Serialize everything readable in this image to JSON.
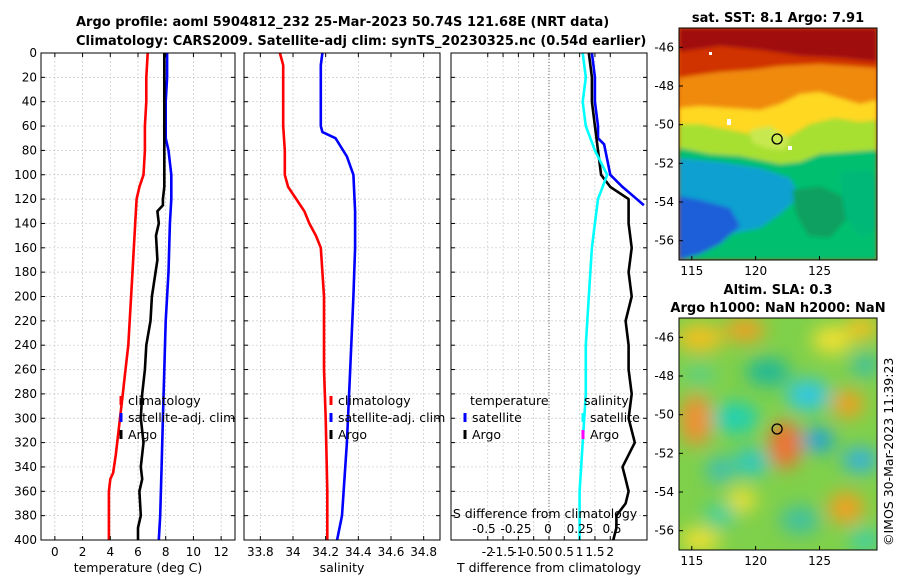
{
  "title": {
    "line1": "Argo profile: aoml 5904812_232 25-Mar-2023 50.74S 121.68E (NRT data)",
    "line2": "Climatology: CARS2009. Satellite-adj clim: synTS_20230325.nc (0.54d earlier)"
  },
  "watermark": "©IMOS 30-Mar-2023 11:39:23",
  "chart_data": [
    {
      "id": "temperature",
      "type": "line",
      "xlabel": "temperature (deg C)",
      "xlim": [
        -1,
        13
      ],
      "xticks": [
        0,
        2,
        4,
        6,
        8,
        10,
        12
      ],
      "ylim": [
        0,
        400
      ],
      "yticks": [
        0,
        20,
        40,
        60,
        80,
        100,
        120,
        140,
        160,
        180,
        200,
        220,
        240,
        260,
        280,
        300,
        320,
        340,
        360,
        380,
        400
      ],
      "grid": true,
      "legend_position": "lower-center",
      "series": [
        {
          "name": "climatology",
          "color": "#ff0000",
          "x": [
            6.7,
            6.6,
            6.6,
            6.5,
            6.5,
            6.4,
            6.1,
            5.9,
            5.8,
            5.6,
            5.5,
            5.3,
            5.1,
            4.9,
            4.7,
            4.4,
            4.2,
            4.0,
            3.9,
            3.9,
            3.9
          ],
          "y": [
            0,
            20,
            40,
            60,
            80,
            100,
            110,
            120,
            140,
            180,
            200,
            240,
            260,
            280,
            300,
            330,
            345,
            350,
            360,
            380,
            400
          ]
        },
        {
          "name": "satellite-adj. clim",
          "color": "#0000ff",
          "x": [
            8.1,
            8.1,
            8.0,
            8.0,
            8.0,
            8.2,
            8.4,
            8.4,
            8.3,
            8.2,
            8.1,
            8.0,
            7.9,
            7.8,
            7.7,
            7.6,
            7.5
          ],
          "y": [
            0,
            20,
            40,
            60,
            70,
            80,
            100,
            120,
            140,
            180,
            200,
            220,
            260,
            300,
            340,
            380,
            400
          ]
        },
        {
          "name": "Argo",
          "color": "#000000",
          "x": [
            7.9,
            7.9,
            7.9,
            7.9,
            7.9,
            7.9,
            7.8,
            7.8,
            7.4,
            7.5,
            7.3,
            7.4,
            7.0,
            6.9,
            6.6,
            6.5,
            6.3,
            6.2,
            6.4,
            6.2,
            6.3,
            6.1,
            6.2,
            6.0,
            6.0
          ],
          "y": [
            0,
            40,
            60,
            80,
            100,
            110,
            120,
            125,
            130,
            140,
            150,
            170,
            200,
            220,
            240,
            260,
            280,
            300,
            320,
            340,
            350,
            360,
            380,
            390,
            400
          ]
        }
      ]
    },
    {
      "id": "salinity",
      "type": "line",
      "xlabel": "salinity",
      "xlim": [
        33.7,
        34.9
      ],
      "xticks": [
        33.8,
        34,
        34.2,
        34.4,
        34.6,
        34.8
      ],
      "ylim": [
        0,
        400
      ],
      "grid": true,
      "legend_position": "lower-center",
      "series": [
        {
          "name": "climatology",
          "color": "#ff0000",
          "x": [
            33.92,
            33.94,
            33.94,
            33.95,
            33.95,
            33.97,
            34.02,
            34.07,
            34.1,
            34.14,
            34.17,
            34.18,
            34.19,
            34.19,
            34.2,
            34.21,
            34.21
          ],
          "y": [
            0,
            10,
            60,
            80,
            100,
            110,
            120,
            130,
            140,
            150,
            160,
            180,
            200,
            260,
            300,
            360,
            400
          ]
        },
        {
          "name": "satellite-adj. clim",
          "color": "#0000ff",
          "x": [
            34.18,
            34.17,
            34.17,
            34.17,
            34.18,
            34.26,
            34.33,
            34.37,
            34.38,
            34.38,
            34.37,
            34.35,
            34.33,
            34.3,
            34.27
          ],
          "y": [
            0,
            10,
            40,
            60,
            65,
            70,
            85,
            100,
            130,
            160,
            200,
            260,
            320,
            380,
            400
          ]
        },
        {
          "name": "Argo",
          "color": "#000000",
          "x": [],
          "y": []
        }
      ]
    },
    {
      "id": "t_difference",
      "type": "line",
      "xlabel": "T difference from climatology",
      "xlim": [
        -3.2,
        3.2
      ],
      "xticks": [
        -2,
        -1.5,
        -1,
        -0.5,
        0,
        0.5,
        1,
        1.5,
        2
      ],
      "top_xlabel": "S difference from climatology",
      "top_xticks": [
        "-0.5",
        "-0.25",
        "0",
        "0.25",
        "0.5"
      ],
      "ylim": [
        0,
        400
      ],
      "grid": true,
      "zero_line": true,
      "legends": [
        {
          "title": "temperature",
          "entries": [
            {
              "name": "satellite",
              "color": "#0000ff"
            },
            {
              "name": "Argo",
              "color": "#000000"
            }
          ]
        },
        {
          "title": "salinity",
          "entries": [
            {
              "name": "satellite",
              "color": "#00ffff"
            },
            {
              "name": "Argo",
              "color": "#ff00ff"
            }
          ]
        }
      ],
      "series": [
        {
          "name": "temperature satellite",
          "color": "#0000ff",
          "x": [
            1.4,
            1.5,
            1.5,
            1.6,
            1.6,
            1.8,
            2.0,
            2.4,
            3.1
          ],
          "y": [
            0,
            20,
            40,
            60,
            70,
            75,
            100,
            110,
            125
          ]
        },
        {
          "name": "temperature Argo",
          "color": "#000000",
          "x": [
            1.3,
            1.4,
            1.4,
            1.5,
            1.6,
            1.7,
            2.0,
            2.6,
            2.6,
            2.6,
            2.7,
            2.6,
            2.7,
            2.5,
            2.6,
            2.6,
            2.7,
            2.6,
            2.8,
            2.4,
            2.5,
            2.6,
            2.5,
            2.2,
            2.2,
            2.1
          ],
          "y": [
            0,
            20,
            40,
            60,
            80,
            100,
            110,
            120,
            130,
            140,
            160,
            180,
            200,
            220,
            240,
            260,
            280,
            300,
            320,
            340,
            350,
            360,
            370,
            380,
            390,
            400
          ]
        },
        {
          "name": "salinity satellite",
          "color": "#00ffff",
          "x": [
            1.1,
            1.2,
            1.1,
            1.2,
            1.5,
            1.9,
            1.6,
            1.5,
            1.4,
            1.3,
            1.2,
            1.2,
            1.1,
            1.0,
            1.0
          ],
          "y": [
            0,
            20,
            40,
            60,
            80,
            100,
            120,
            140,
            160,
            200,
            240,
            280,
            320,
            360,
            400
          ]
        },
        {
          "name": "salinity Argo",
          "color": "#ff00ff",
          "x": [],
          "y": []
        }
      ]
    },
    {
      "id": "sat_sst_map",
      "type": "heatmap",
      "title": "sat. SST: 8.1 Argo: 7.91",
      "xlim": [
        114,
        129.5
      ],
      "ylim": [
        -57,
        -45
      ],
      "xticks": [
        115,
        120,
        125
      ],
      "yticks": [
        -46,
        -48,
        -50,
        -52,
        -54,
        -56
      ],
      "marker": {
        "lon": 121.68,
        "lat": -50.74
      }
    },
    {
      "id": "altim_sla_map",
      "type": "heatmap",
      "title_line1": "Altim. SLA: 0.3",
      "title_line2": "Argo h1000: NaN h2000: NaN",
      "xlim": [
        114,
        129.5
      ],
      "ylim": [
        -57,
        -45
      ],
      "xticks": [
        115,
        120,
        125
      ],
      "yticks": [
        -46,
        -48,
        -50,
        -52,
        -54,
        -56
      ],
      "marker": {
        "lon": 121.68,
        "lat": -50.74
      }
    }
  ]
}
